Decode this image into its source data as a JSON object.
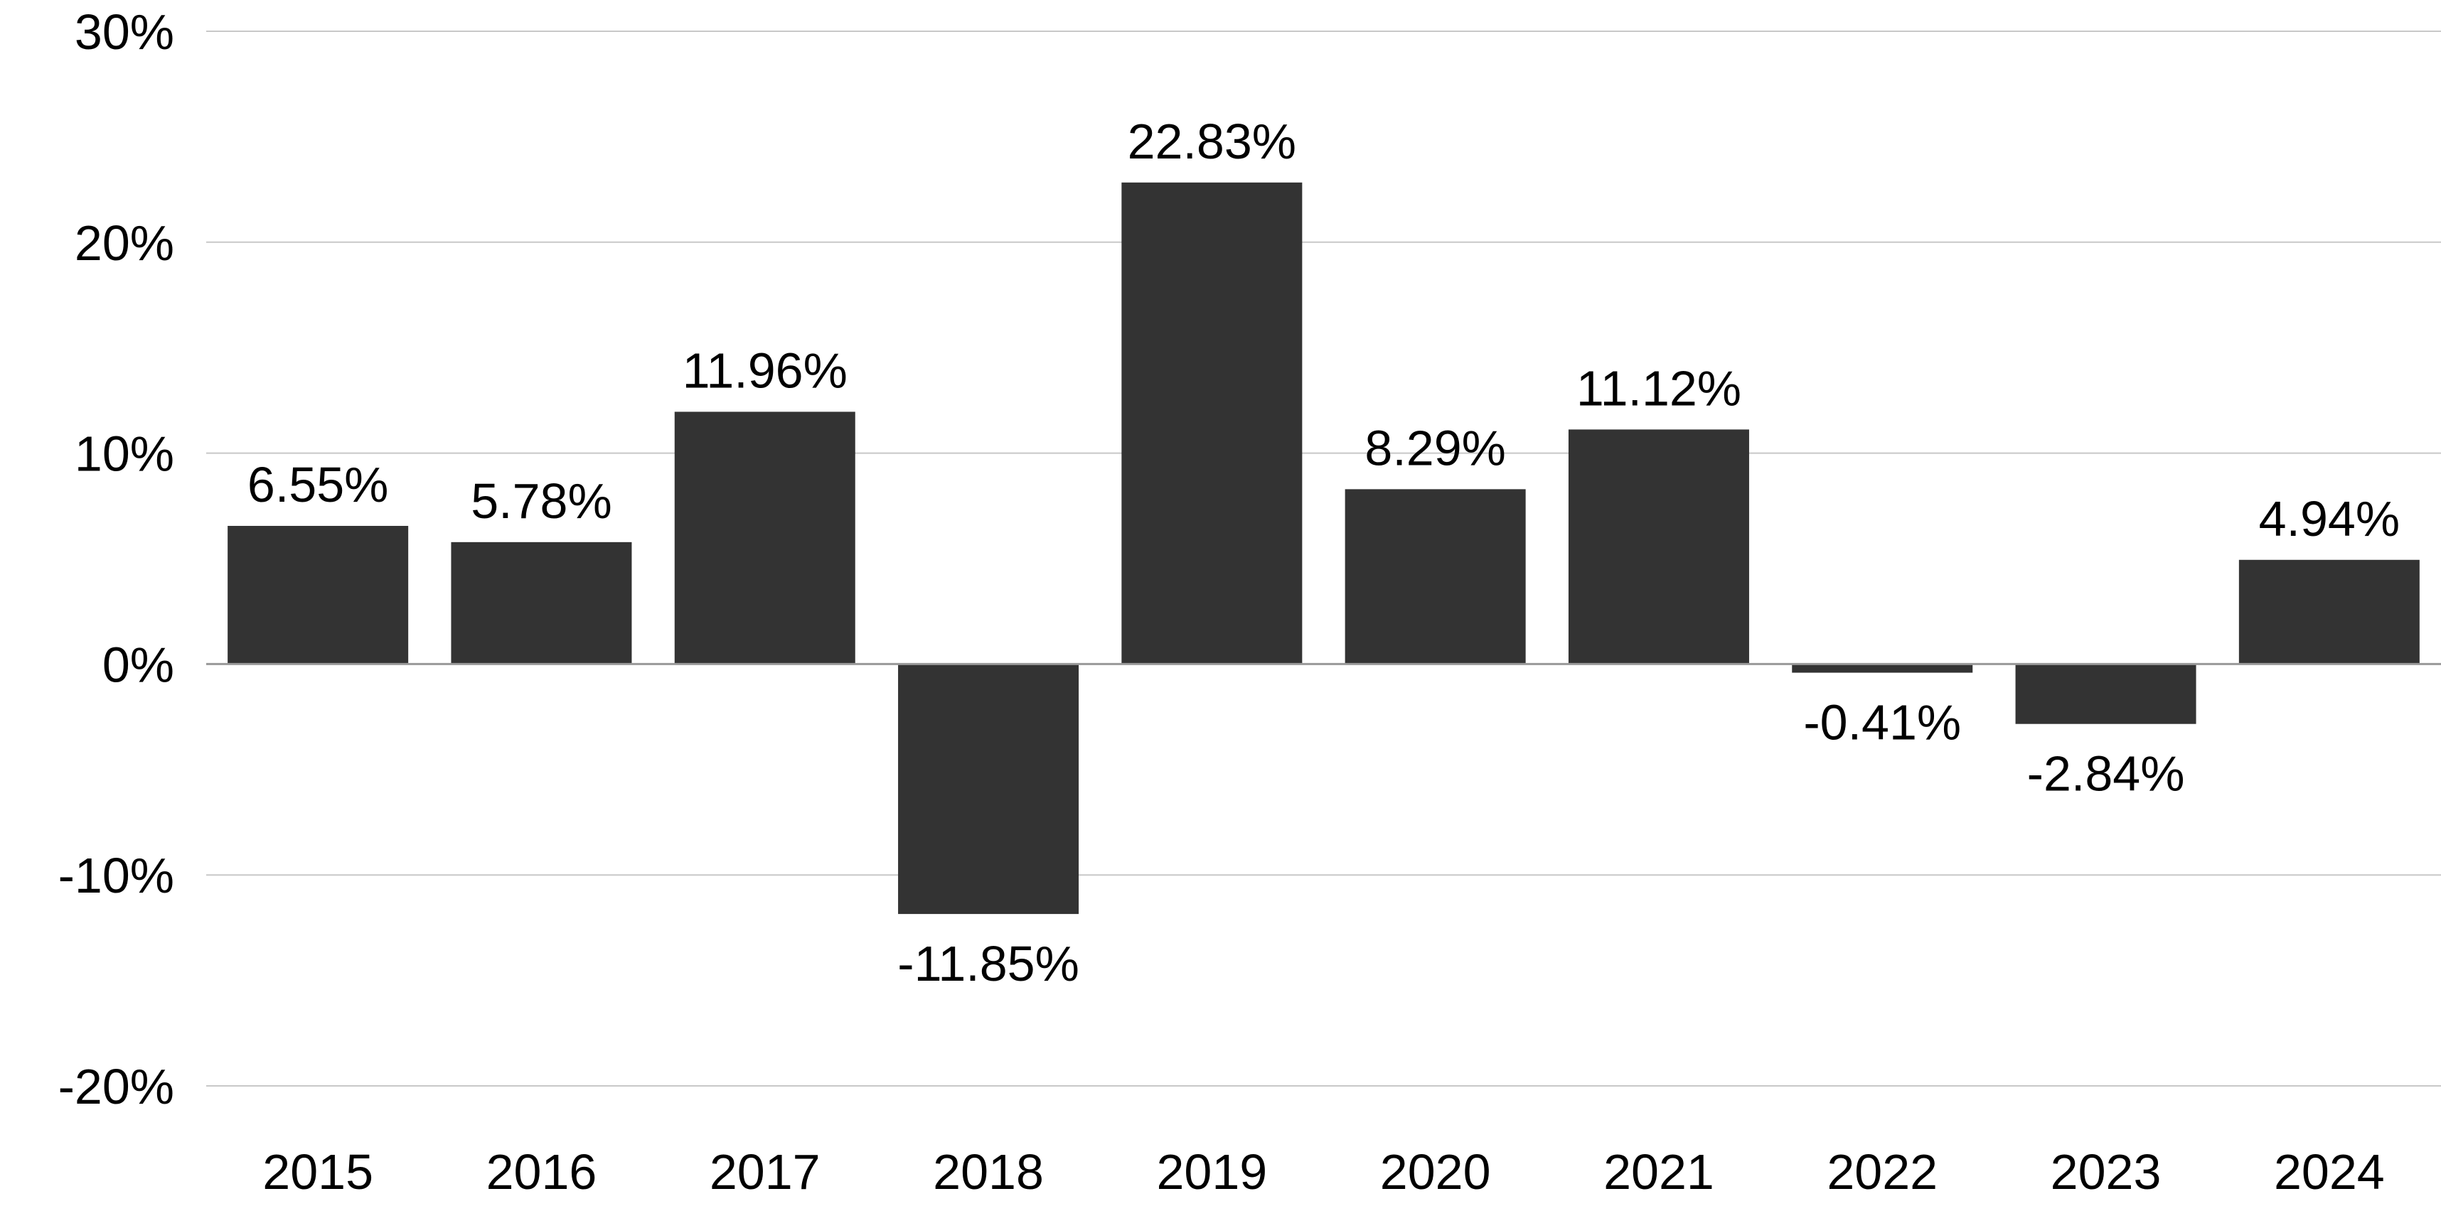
{
  "chart_data": {
    "type": "bar",
    "title": "",
    "xlabel": "",
    "ylabel": "",
    "categories": [
      "2015",
      "2016",
      "2017",
      "2018",
      "2019",
      "2020",
      "2021",
      "2022",
      "2023",
      "2024"
    ],
    "values": [
      6.55,
      5.78,
      11.96,
      -11.85,
      22.83,
      8.29,
      11.12,
      -0.41,
      -2.84,
      4.94
    ],
    "value_labels": [
      "6.55%",
      "5.78%",
      "11.96%",
      "-11.85%",
      "22.83%",
      "8.29%",
      "11.12%",
      "-0.41%",
      "-2.84%",
      "4.94%"
    ],
    "ylim": [
      -20,
      30
    ],
    "yticks": [
      30,
      20,
      10,
      0,
      -10,
      -20
    ],
    "ytick_labels": [
      "30%",
      "20%",
      "10%",
      "0%",
      "-10%",
      "-20%"
    ],
    "grid": true,
    "legend": "none",
    "colors": {
      "bar": "#333333",
      "grid": "#c8c8c8",
      "zero_line": "#999999",
      "text": "#000000"
    }
  }
}
